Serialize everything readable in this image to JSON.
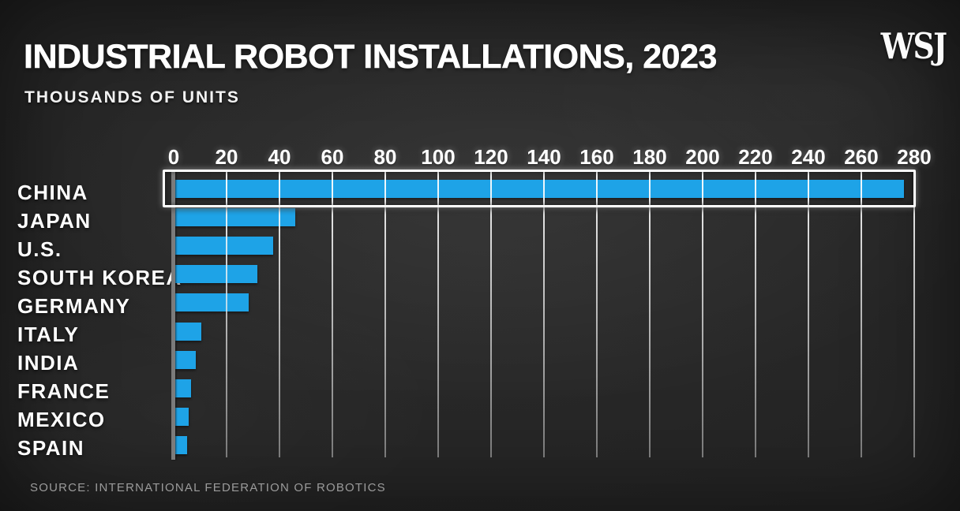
{
  "header": {
    "title": "INDUSTRIAL ROBOT INSTALLATIONS, 2023",
    "subtitle": "THOUSANDS OF UNITS",
    "brand": "WSJ"
  },
  "footer": {
    "source": "SOURCE: INTERNATIONAL FEDERATION OF ROBOTICS"
  },
  "colors": {
    "bar": "#1EA3E7",
    "background": "#232323",
    "gridline": "#e6e6e6",
    "axis_line": "#7b7b7b",
    "highlight_border": "#ffffff",
    "text": "#ffffff",
    "source_text": "#9b9b9b"
  },
  "chart_data": {
    "type": "bar",
    "orientation": "horizontal",
    "title": "INDUSTRIAL ROBOT INSTALLATIONS, 2023",
    "units": "THOUSANDS OF UNITS",
    "categories": [
      "CHINA",
      "JAPAN",
      "U.S.",
      "SOUTH KOREA",
      "GERMANY",
      "ITALY",
      "INDIA",
      "FRANCE",
      "MEXICO",
      "SPAIN"
    ],
    "values": [
      276,
      46,
      37.5,
      31.5,
      28.5,
      10.5,
      8.5,
      6.5,
      5.8,
      5
    ],
    "xlim": [
      0,
      280
    ],
    "xticks": [
      0,
      20,
      40,
      60,
      80,
      100,
      120,
      140,
      160,
      180,
      200,
      220,
      240,
      260,
      280
    ],
    "grid": true,
    "gridline_axis": "x",
    "legend": false,
    "highlighted_category": "CHINA",
    "source": "SOURCE: INTERNATIONAL FEDERATION OF ROBOTICS"
  }
}
